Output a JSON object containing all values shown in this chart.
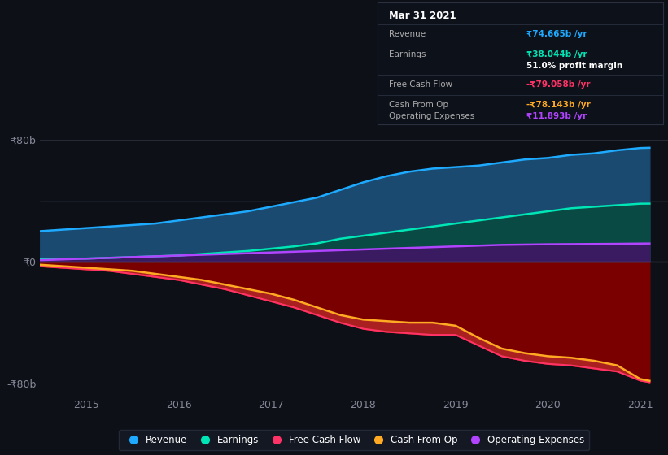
{
  "background_color": "#0d1117",
  "plot_bg_color": "#0d1117",
  "years": [
    2014.5,
    2014.75,
    2015.0,
    2015.25,
    2015.5,
    2015.75,
    2016.0,
    2016.25,
    2016.5,
    2016.75,
    2017.0,
    2017.25,
    2017.5,
    2017.75,
    2018.0,
    2018.25,
    2018.5,
    2018.75,
    2019.0,
    2019.25,
    2019.5,
    2019.75,
    2020.0,
    2020.25,
    2020.5,
    2020.75,
    2021.0,
    2021.1
  ],
  "revenue": [
    20,
    21,
    22,
    23,
    24,
    25,
    27,
    29,
    31,
    33,
    36,
    39,
    42,
    47,
    52,
    56,
    59,
    61,
    62,
    63,
    65,
    67,
    68,
    70,
    71,
    73,
    74.5,
    74.665
  ],
  "earnings": [
    2,
    2,
    2,
    2.5,
    3,
    3.5,
    4,
    5,
    6,
    7,
    8.5,
    10,
    12,
    15,
    17,
    19,
    21,
    23,
    25,
    27,
    29,
    31,
    33,
    35,
    36,
    37,
    38.0,
    38.044
  ],
  "free_cash_flow": [
    -3,
    -4,
    -5,
    -6,
    -8,
    -10,
    -12,
    -15,
    -18,
    -22,
    -26,
    -30,
    -35,
    -40,
    -44,
    -46,
    -47,
    -48,
    -48,
    -55,
    -62,
    -65,
    -67,
    -68,
    -70,
    -72,
    -78,
    -79.058
  ],
  "cash_from_op": [
    -2,
    -3,
    -4,
    -5,
    -6,
    -8,
    -10,
    -12,
    -15,
    -18,
    -21,
    -25,
    -30,
    -35,
    -38,
    -39,
    -40,
    -40,
    -42,
    -50,
    -57,
    -60,
    -62,
    -63,
    -65,
    -68,
    -77,
    -78.143
  ],
  "operating_expenses": [
    1,
    1.5,
    2,
    2.5,
    3,
    3.5,
    4,
    4.5,
    5,
    5.5,
    6,
    6.5,
    7,
    7.5,
    8,
    8.5,
    9,
    9.5,
    10,
    10.5,
    11,
    11.2,
    11.4,
    11.5,
    11.6,
    11.7,
    11.85,
    11.893
  ],
  "revenue_color": "#1eaaff",
  "earnings_color": "#00e5b5",
  "free_cash_flow_color": "#ff3366",
  "cash_from_op_color": "#ffaa22",
  "operating_expenses_color": "#b044ff",
  "revenue_fill": "#1a4a70",
  "earnings_fill": "#0a4a45",
  "opex_fill": "#3a1a60",
  "neg_fill_outer": "#7a0000",
  "neg_fill_inner": "#aa2020",
  "yticks": [
    -80,
    0,
    80
  ],
  "ylabels": [
    "-₹80b",
    "₹0",
    "₹80b"
  ],
  "ylim": [
    -88,
    88
  ],
  "xlim": [
    2014.5,
    2021.3
  ],
  "xticks": [
    2015,
    2016,
    2017,
    2018,
    2019,
    2020,
    2021
  ],
  "legend_items": [
    "Revenue",
    "Earnings",
    "Free Cash Flow",
    "Cash From Op",
    "Operating Expenses"
  ],
  "legend_colors": [
    "#1eaaff",
    "#00e5b5",
    "#ff3366",
    "#ffaa22",
    "#b044ff"
  ],
  "tooltip_date": "Mar 31 2021",
  "tooltip_revenue_label": "Revenue",
  "tooltip_revenue_val": "₹74.665b /yr",
  "tooltip_earnings_label": "Earnings",
  "tooltip_earnings_val": "₹38.044b /yr",
  "tooltip_margin": "51.0% profit margin",
  "tooltip_fcf_label": "Free Cash Flow",
  "tooltip_fcf_val": "-₹79.058b /yr",
  "tooltip_cashop_label": "Cash From Op",
  "tooltip_cashop_val": "-₹78.143b /yr",
  "tooltip_opex_label": "Operating Expenses",
  "tooltip_opex_val": "₹11.893b /yr"
}
